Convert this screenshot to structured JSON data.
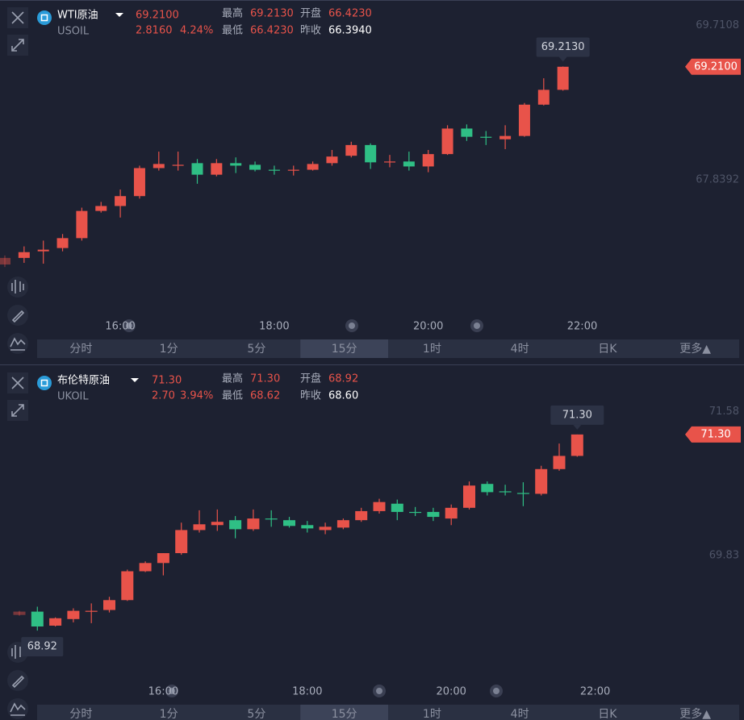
{
  "panels": [
    {
      "name": "WTI原油",
      "code": "USOIL",
      "price": "69.2100",
      "change": "2.8160",
      "change_pct": "4.24%",
      "stats": [
        {
          "label": "最高",
          "value": "69.2130"
        },
        {
          "label": "开盘",
          "value": "66.4230"
        },
        {
          "label": "最低",
          "value": "66.4230"
        },
        {
          "label": "昨收",
          "value": "66.3940"
        }
      ]
    },
    {
      "name": "布伦特原油",
      "code": "UKOIL",
      "price": "71.30",
      "change": "2.70",
      "change_pct": "3.94%",
      "stats": [
        {
          "label": "最高",
          "value": "71.30"
        },
        {
          "label": "开盘",
          "value": "68.92"
        },
        {
          "label": "最低",
          "value": "68.62"
        },
        {
          "label": "昨收",
          "value": "68.60"
        }
      ]
    }
  ],
  "tabs": [
    "分时",
    "1分",
    "5分",
    "15分",
    "1时",
    "4时",
    "日K",
    "更多▲"
  ],
  "chart_data": [
    {
      "type": "candlestick",
      "up_color": "#e8534a",
      "down_color": "#2fbf85",
      "grid": false,
      "categories": [
        null,
        null,
        null,
        null,
        null,
        null,
        "16:00",
        null,
        null,
        null,
        null,
        null,
        null,
        null,
        "18:00",
        null,
        null,
        null,
        null,
        null,
        null,
        null,
        "20:00",
        null,
        null,
        null,
        null,
        null,
        null,
        null,
        "22:00"
      ],
      "open": [
        66.81,
        66.89,
        66.97,
        67.01,
        67.13,
        67.46,
        67.52,
        67.64,
        67.98,
        68.01,
        68.04,
        67.9,
        68.04,
        68.02,
        67.96,
        67.95,
        67.96,
        68.04,
        68.13,
        68.26,
        68.05,
        68.06,
        68.0,
        68.15,
        68.46,
        68.36,
        68.33,
        68.37,
        68.75,
        68.93,
        null
      ],
      "high": [
        66.92,
        67.03,
        67.1,
        67.18,
        67.5,
        67.57,
        67.72,
        68.01,
        68.18,
        68.18,
        68.09,
        68.09,
        68.11,
        68.06,
        68.01,
        68.01,
        68.06,
        68.2,
        68.3,
        68.28,
        68.14,
        68.18,
        68.2,
        68.5,
        68.51,
        68.43,
        68.5,
        68.77,
        69.07,
        69.213,
        null
      ],
      "low": [
        66.78,
        66.83,
        66.82,
        66.97,
        67.1,
        67.44,
        67.38,
        67.61,
        67.95,
        67.95,
        67.79,
        67.88,
        67.92,
        67.94,
        67.9,
        67.89,
        67.95,
        68.01,
        68.11,
        67.97,
        67.99,
        67.95,
        67.93,
        68.14,
        68.31,
        68.26,
        68.21,
        68.36,
        68.74,
        68.92,
        null
      ],
      "close": [
        66.89,
        66.96,
        66.99,
        67.13,
        67.46,
        67.52,
        67.64,
        67.98,
        68.03,
        68.02,
        67.9,
        68.04,
        68.01,
        67.96,
        67.95,
        67.96,
        68.03,
        68.12,
        68.26,
        68.05,
        68.06,
        68.0,
        68.15,
        68.46,
        68.36,
        68.35,
        68.37,
        68.75,
        68.93,
        69.21,
        null
      ],
      "ylim": [
        65.93,
        70.02
      ],
      "yticks": [
        69.7108,
        67.8392
      ]
    },
    {
      "type": "candlestick",
      "up_color": "#e8534a",
      "down_color": "#2fbf85",
      "grid": false,
      "low_label": "68.92",
      "categories": [
        null,
        null,
        null,
        null,
        null,
        null,
        null,
        null,
        "16:00",
        null,
        null,
        null,
        null,
        null,
        null,
        null,
        "18:00",
        null,
        null,
        null,
        null,
        null,
        null,
        null,
        "20:00",
        null,
        null,
        null,
        null,
        null,
        null,
        null,
        "22:00"
      ],
      "open": [
        69.11,
        69.15,
        68.98,
        69.06,
        69.15,
        69.17,
        69.29,
        69.64,
        69.74,
        69.86,
        70.14,
        70.2,
        70.26,
        70.15,
        70.28,
        70.26,
        70.2,
        70.14,
        70.17,
        70.26,
        70.37,
        70.46,
        70.36,
        70.36,
        70.28,
        70.41,
        70.7,
        70.61,
        70.59,
        70.58,
        70.88,
        71.04,
        null
      ],
      "high": [
        69.16,
        69.21,
        69.08,
        69.19,
        69.25,
        69.33,
        69.66,
        69.76,
        69.86,
        70.23,
        70.38,
        70.39,
        70.31,
        70.39,
        70.38,
        70.3,
        70.25,
        70.23,
        70.28,
        70.41,
        70.52,
        70.51,
        70.42,
        70.41,
        70.45,
        70.73,
        70.73,
        70.69,
        70.72,
        70.92,
        71.19,
        71.3,
        null
      ],
      "low": [
        69.1,
        68.92,
        68.97,
        69.02,
        69.01,
        69.14,
        69.28,
        69.63,
        69.59,
        69.84,
        70.11,
        70.13,
        70.04,
        70.13,
        70.18,
        70.17,
        70.11,
        70.09,
        70.15,
        70.24,
        70.34,
        70.26,
        70.31,
        70.25,
        70.2,
        70.39,
        70.56,
        70.56,
        70.43,
        70.56,
        70.86,
        71.03,
        null
      ],
      "close": [
        69.15,
        68.97,
        69.07,
        69.16,
        69.16,
        69.29,
        69.64,
        69.74,
        69.86,
        70.14,
        70.21,
        70.24,
        70.15,
        70.28,
        70.27,
        70.19,
        70.16,
        70.18,
        70.26,
        70.37,
        70.48,
        70.36,
        70.35,
        70.3,
        70.41,
        70.68,
        70.6,
        70.6,
        70.58,
        70.88,
        71.04,
        71.3,
        null
      ],
      "ylim": [
        68.06,
        72.15
      ],
      "yticks": [
        71.58,
        69.83
      ]
    }
  ]
}
